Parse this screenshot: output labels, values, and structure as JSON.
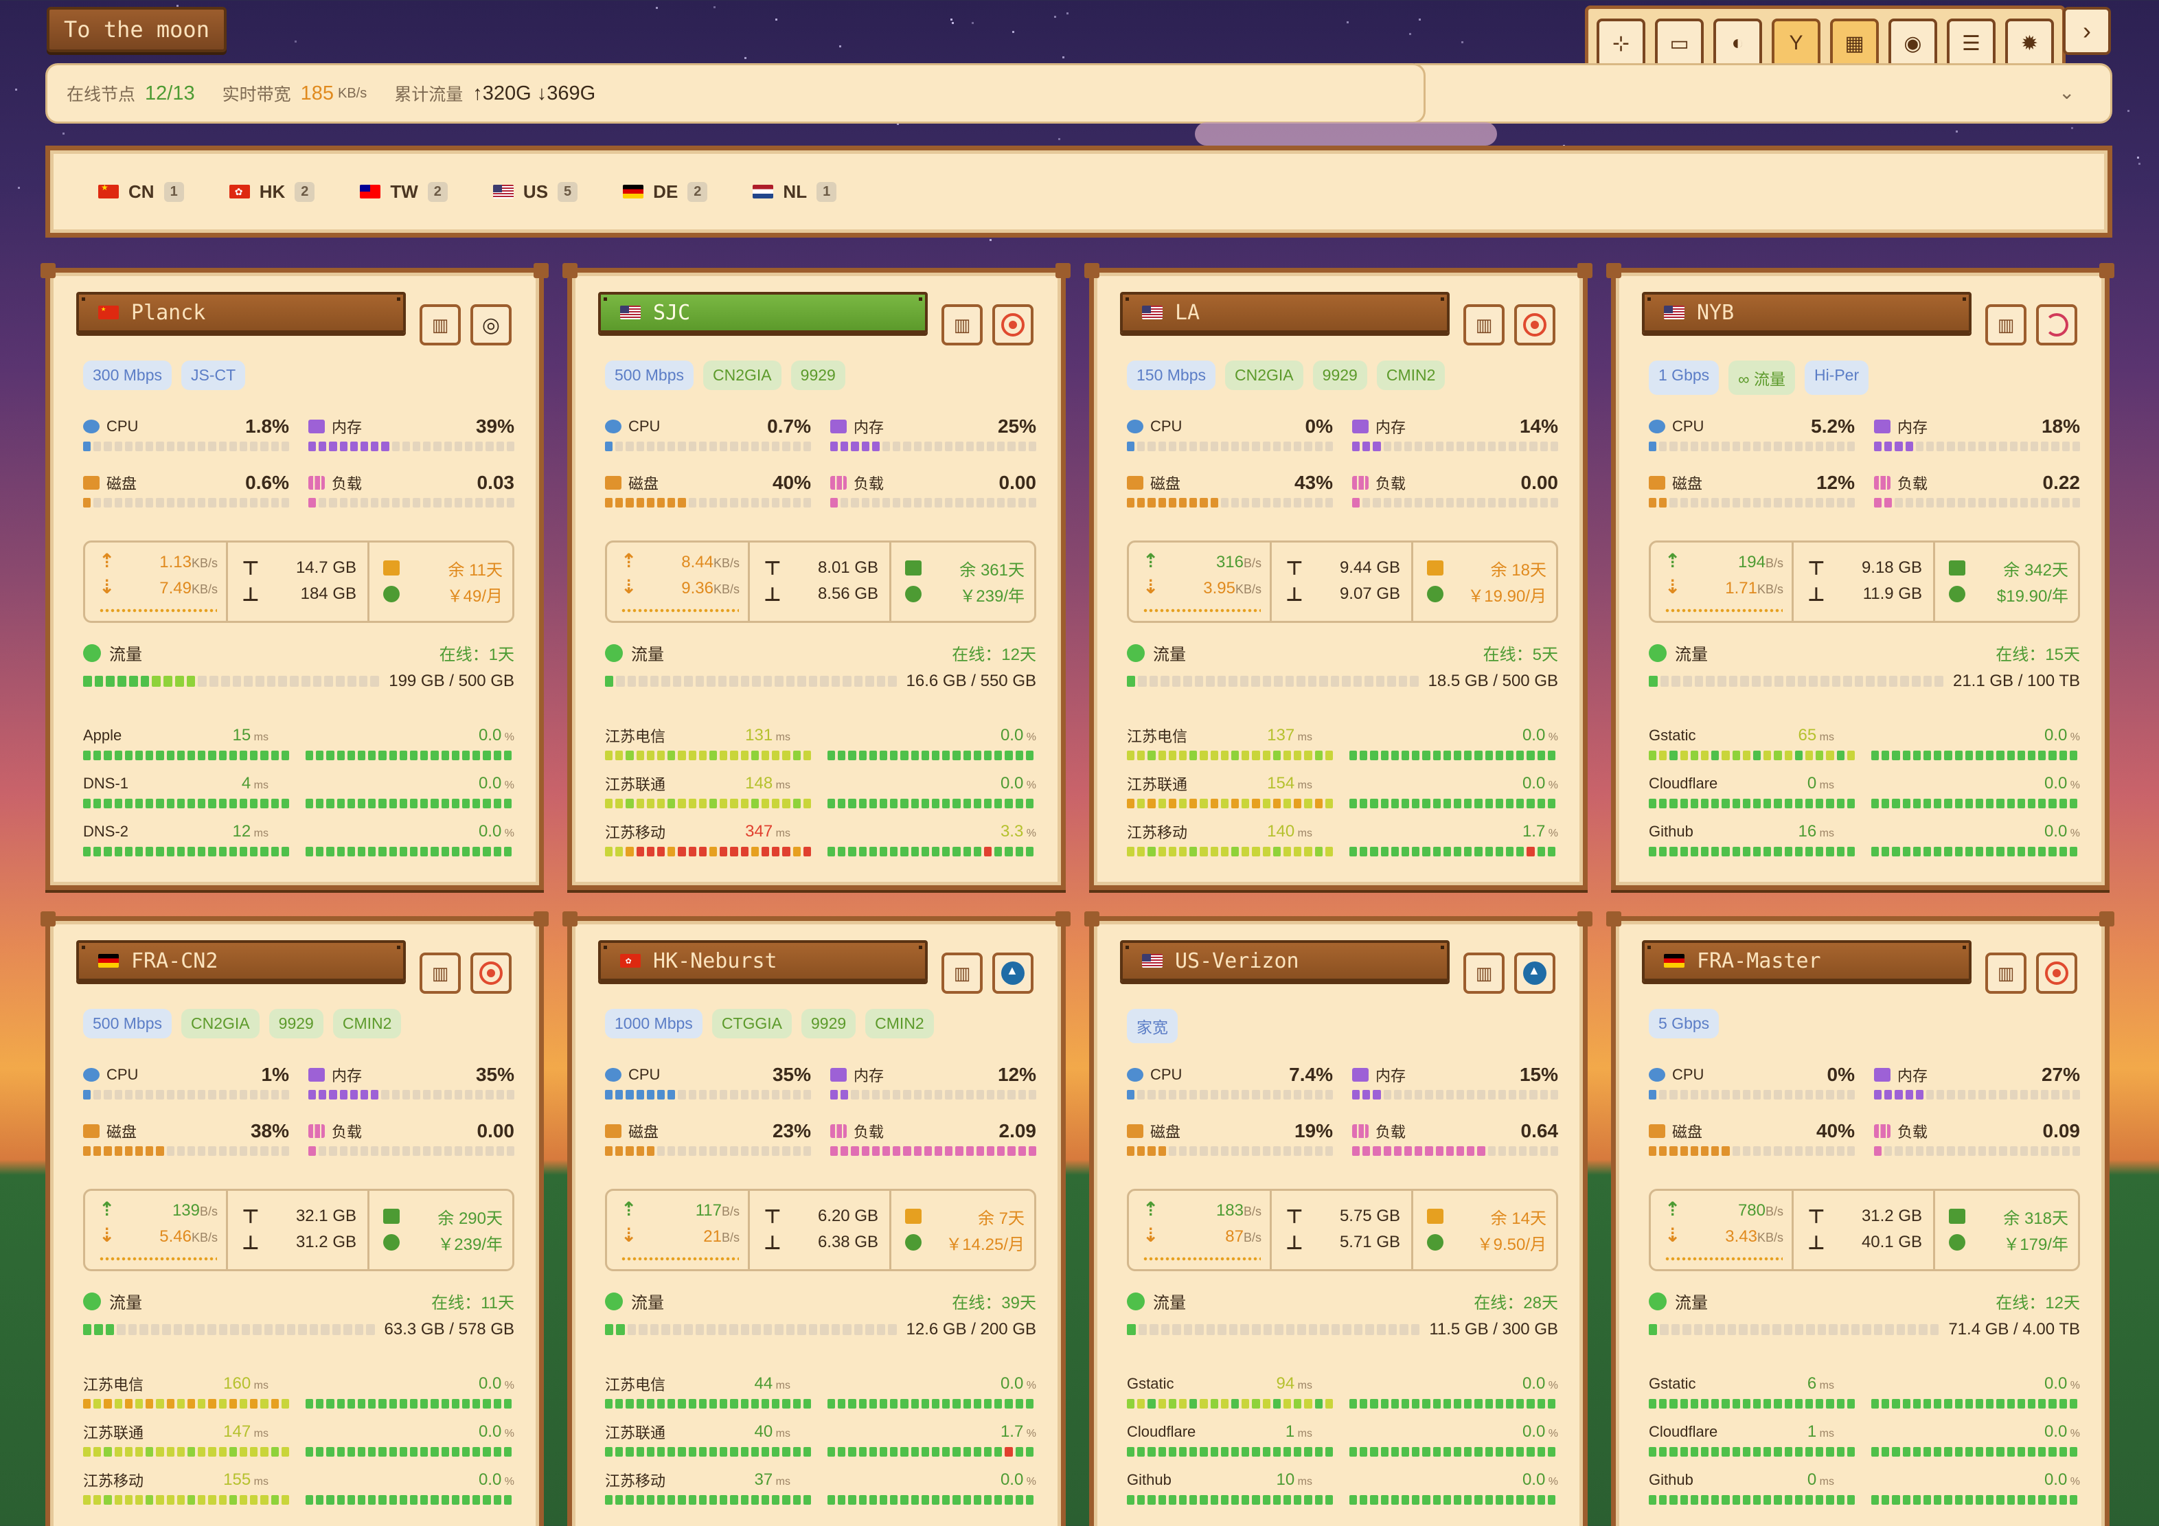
{
  "app": {
    "title": "To the moon"
  },
  "toolbar": {
    "buttons": [
      {
        "icon": "move-icon",
        "glyph": "⊹",
        "active": false
      },
      {
        "icon": "monitor-icon",
        "glyph": "▭",
        "active": false
      },
      {
        "icon": "moon-icon",
        "glyph": "◐",
        "active": false
      },
      {
        "icon": "antenna-icon",
        "glyph": "Y",
        "active": true
      },
      {
        "icon": "grid-icon",
        "glyph": "▦",
        "active": true
      },
      {
        "icon": "palette-icon",
        "glyph": "◉",
        "active": false
      },
      {
        "icon": "sliders-icon",
        "glyph": "☰",
        "active": false
      },
      {
        "icon": "settings-icon",
        "glyph": "✹",
        "active": false
      }
    ],
    "expand_glyph": "›"
  },
  "stats": {
    "online_label": "在线节点",
    "online_value": "12/13",
    "bandwidth_label": "实时带宽",
    "bandwidth_value": "185",
    "bandwidth_unit": "KB/s",
    "traffic_label": "累计流量",
    "traffic_value": "↑320G ↓369G",
    "collapse_glyph": "⌄"
  },
  "filters": [
    {
      "code": "CN",
      "flag": "cn",
      "count": "1"
    },
    {
      "code": "HK",
      "flag": "hk",
      "count": "2"
    },
    {
      "code": "TW",
      "flag": "tw",
      "count": "2"
    },
    {
      "code": "US",
      "flag": "us",
      "count": "5"
    },
    {
      "code": "DE",
      "flag": "de",
      "count": "2"
    },
    {
      "code": "NL",
      "flag": "nl",
      "count": "1"
    }
  ],
  "labels": {
    "cpu": "CPU",
    "mem": "内存",
    "disk": "磁盘",
    "load": "负载",
    "traffic": "流量"
  },
  "servers": [
    {
      "name": "Planck",
      "flag": "cn",
      "online_title": false,
      "os": "lin",
      "tags": [
        {
          "text": "300 Mbps",
          "style": "blue"
        },
        {
          "text": "JS-CT",
          "style": "blue"
        }
      ],
      "cpu": "1.8%",
      "cpu_fill": 0.02,
      "mem": "39%",
      "mem_fill": 0.39,
      "disk": "0.6%",
      "disk_fill": 0.01,
      "load": "0.03",
      "load_fill": 0.03,
      "up": "1.13",
      "up_unit": "KB/s",
      "down": "7.49",
      "down_unit": "KB/s",
      "speed_color": "orange",
      "total_up": "14.7 GB",
      "total_down": "184 GB",
      "remaining": "余 11天",
      "price": "￥49/月",
      "remain_color": "orange",
      "online_days": "在线：1天",
      "traffic_used": "199 GB / 500 GB",
      "traffic_fill": 0.4,
      "pings": [
        {
          "name": "Apple",
          "ms": "15",
          "loss": "0.0",
          "lat_colors": "g"
        },
        {
          "name": "DNS-1",
          "ms": "4",
          "loss": "0.0",
          "lat_colors": "g"
        },
        {
          "name": "DNS-2",
          "ms": "12",
          "loss": "0.0",
          "lat_colors": "g"
        }
      ]
    },
    {
      "name": "SJC",
      "flag": "us",
      "online_title": true,
      "os": "ring",
      "tags": [
        {
          "text": "500 Mbps",
          "style": "blue"
        },
        {
          "text": "CN2GIA",
          "style": "green"
        },
        {
          "text": "9929",
          "style": "green"
        }
      ],
      "cpu": "0.7%",
      "cpu_fill": 0.01,
      "mem": "25%",
      "mem_fill": 0.25,
      "disk": "40%",
      "disk_fill": 0.4,
      "load": "0.00",
      "load_fill": 0,
      "up": "8.44",
      "up_unit": "KB/s",
      "down": "9.36",
      "down_unit": "KB/s",
      "speed_color": "orange",
      "total_up": "8.01 GB",
      "total_down": "8.56 GB",
      "remaining": "余 361天",
      "price": "￥239/年",
      "remain_color": "green",
      "online_days": "在线：12天",
      "traffic_used": "16.6 GB / 550 GB",
      "traffic_fill": 0.03,
      "pings": [
        {
          "name": "江苏电信",
          "ms": "131",
          "loss": "0.0",
          "lat_colors": "y"
        },
        {
          "name": "江苏联通",
          "ms": "148",
          "loss": "0.0",
          "lat_colors": "y"
        },
        {
          "name": "江苏移动",
          "ms": "347",
          "loss": "3.3",
          "lat_colors": "r"
        }
      ]
    },
    {
      "name": "LA",
      "flag": "us",
      "online_title": false,
      "os": "ring",
      "tags": [
        {
          "text": "150 Mbps",
          "style": "blue"
        },
        {
          "text": "CN2GIA",
          "style": "green"
        },
        {
          "text": "9929",
          "style": "green"
        },
        {
          "text": "CMIN2",
          "style": "green"
        }
      ],
      "cpu": "0%",
      "cpu_fill": 0,
      "mem": "14%",
      "mem_fill": 0.14,
      "disk": "43%",
      "disk_fill": 0.43,
      "load": "0.00",
      "load_fill": 0,
      "up": "316",
      "up_unit": "B/s",
      "down": "3.95",
      "down_unit": "KB/s",
      "speed_color": "green",
      "total_up": "9.44 GB",
      "total_down": "9.07 GB",
      "remaining": "余 18天",
      "price": "￥19.90/月",
      "remain_color": "orange",
      "online_days": "在线：5天",
      "traffic_used": "18.5 GB / 500 GB",
      "traffic_fill": 0.04,
      "pings": [
        {
          "name": "江苏电信",
          "ms": "137",
          "loss": "0.0",
          "lat_colors": "y"
        },
        {
          "name": "江苏联通",
          "ms": "154",
          "loss": "0.0",
          "lat_colors": "o"
        },
        {
          "name": "江苏移动",
          "ms": "140",
          "loss": "1.7",
          "lat_colors": "y"
        }
      ]
    },
    {
      "name": "NYB",
      "flag": "us",
      "online_title": false,
      "os": "deb",
      "tags": [
        {
          "text": "1 Gbps",
          "style": "blue"
        },
        {
          "text": "∞ 流量",
          "style": "green"
        },
        {
          "text": "Hi-Per",
          "style": "blue"
        }
      ],
      "cpu": "5.2%",
      "cpu_fill": 0.05,
      "mem": "18%",
      "mem_fill": 0.18,
      "disk": "12%",
      "disk_fill": 0.12,
      "load": "0.22",
      "load_fill": 0.1,
      "up": "194",
      "up_unit": "B/s",
      "down": "1.71",
      "down_unit": "KB/s",
      "speed_color": "green",
      "total_up": "9.18 GB",
      "total_down": "11.9 GB",
      "remaining": "余 342天",
      "price": "$19.90/年",
      "remain_color": "green",
      "online_days": "在线：15天",
      "traffic_used": "21.1 GB / 100 TB",
      "traffic_fill": 0.01,
      "pings": [
        {
          "name": "Gstatic",
          "ms": "65",
          "loss": "0.0",
          "lat_colors": "m"
        },
        {
          "name": "Cloudflare",
          "ms": "0",
          "loss": "0.0",
          "lat_colors": "g"
        },
        {
          "name": "Github",
          "ms": "16",
          "loss": "0.0",
          "lat_colors": "g"
        }
      ]
    },
    {
      "name": "FRA-CN2",
      "flag": "de",
      "online_title": false,
      "os": "ring",
      "tags": [
        {
          "text": "500 Mbps",
          "style": "blue"
        },
        {
          "text": "CN2GIA",
          "style": "green"
        },
        {
          "text": "9929",
          "style": "green"
        },
        {
          "text": "CMIN2",
          "style": "green"
        }
      ],
      "cpu": "1%",
      "cpu_fill": 0.01,
      "mem": "35%",
      "mem_fill": 0.35,
      "disk": "38%",
      "disk_fill": 0.38,
      "load": "0.00",
      "load_fill": 0,
      "up": "139",
      "up_unit": "B/s",
      "down": "5.46",
      "down_unit": "KB/s",
      "speed_color": "green",
      "total_up": "32.1 GB",
      "total_down": "31.2 GB",
      "remaining": "余 290天",
      "price": "￥239/年",
      "remain_color": "green",
      "online_days": "在线：11天",
      "traffic_used": "63.3 GB / 578 GB",
      "traffic_fill": 0.11,
      "pings": [
        {
          "name": "江苏电信",
          "ms": "160",
          "loss": "0.0",
          "lat_colors": "o"
        },
        {
          "name": "江苏联通",
          "ms": "147",
          "loss": "0.0",
          "lat_colors": "y"
        },
        {
          "name": "江苏移动",
          "ms": "155",
          "loss": "0.0",
          "lat_colors": "y"
        }
      ]
    },
    {
      "name": "HK-Neburst",
      "flag": "hk",
      "online_title": false,
      "os": "arch",
      "tags": [
        {
          "text": "1000 Mbps",
          "style": "blue"
        },
        {
          "text": "CTGGIA",
          "style": "green"
        },
        {
          "text": "9929",
          "style": "green"
        },
        {
          "text": "CMIN2",
          "style": "green"
        }
      ],
      "cpu": "35%",
      "cpu_fill": 0.35,
      "mem": "12%",
      "mem_fill": 0.12,
      "disk": "23%",
      "disk_fill": 0.23,
      "load": "2.09",
      "load_fill": 1,
      "up": "117",
      "up_unit": "B/s",
      "down": "21",
      "down_unit": "B/s",
      "speed_color": "green",
      "total_up": "6.20 GB",
      "total_down": "6.38 GB",
      "remaining": "余 7天",
      "price": "￥14.25/月",
      "remain_color": "orange",
      "online_days": "在线：39天",
      "traffic_used": "12.6 GB / 200 GB",
      "traffic_fill": 0.06,
      "pings": [
        {
          "name": "江苏电信",
          "ms": "44",
          "loss": "0.0",
          "lat_colors": "g"
        },
        {
          "name": "江苏联通",
          "ms": "40",
          "loss": "1.7",
          "lat_colors": "g"
        },
        {
          "name": "江苏移动",
          "ms": "37",
          "loss": "0.0",
          "lat_colors": "g"
        }
      ]
    },
    {
      "name": "US-Verizon",
      "flag": "us",
      "online_title": false,
      "os": "arch",
      "tags": [
        {
          "text": "家宽",
          "style": "blue"
        }
      ],
      "cpu": "7.4%",
      "cpu_fill": 0.07,
      "mem": "15%",
      "mem_fill": 0.15,
      "disk": "19%",
      "disk_fill": 0.19,
      "load": "0.64",
      "load_fill": 0.64,
      "up": "183",
      "up_unit": "B/s",
      "down": "87",
      "down_unit": "B/s",
      "speed_color": "green",
      "total_up": "5.75 GB",
      "total_down": "5.71 GB",
      "remaining": "余 14天",
      "price": "￥9.50/月",
      "remain_color": "orange",
      "online_days": "在线：28天",
      "traffic_used": "11.5 GB / 300 GB",
      "traffic_fill": 0.04,
      "pings": [
        {
          "name": "Gstatic",
          "ms": "94",
          "loss": "0.0",
          "lat_colors": "m"
        },
        {
          "name": "Cloudflare",
          "ms": "1",
          "loss": "0.0",
          "lat_colors": "g"
        },
        {
          "name": "Github",
          "ms": "10",
          "loss": "0.0",
          "lat_colors": "g"
        }
      ]
    },
    {
      "name": "FRA-Master",
      "flag": "de",
      "online_title": false,
      "os": "ring",
      "tags": [
        {
          "text": "5 Gbps",
          "style": "blue"
        }
      ],
      "cpu": "0%",
      "cpu_fill": 0,
      "mem": "27%",
      "mem_fill": 0.27,
      "disk": "40%",
      "disk_fill": 0.4,
      "load": "0.09",
      "load_fill": 0.05,
      "up": "780",
      "up_unit": "B/s",
      "down": "3.43",
      "down_unit": "KB/s",
      "speed_color": "green",
      "total_up": "31.2 GB",
      "total_down": "40.1 GB",
      "remaining": "余 318天",
      "price": "￥179/年",
      "remain_color": "green",
      "online_days": "在线：12天",
      "traffic_used": "71.4 GB / 4.00 TB",
      "traffic_fill": 0.02,
      "pings": [
        {
          "name": "Gstatic",
          "ms": "6",
          "loss": "0.0",
          "lat_colors": "g"
        },
        {
          "name": "Cloudflare",
          "ms": "1",
          "loss": "0.0",
          "lat_colors": "g"
        },
        {
          "name": "Github",
          "ms": "0",
          "loss": "0.0",
          "lat_colors": "g"
        }
      ]
    }
  ],
  "colors": {
    "cpu": "#4e8dd0",
    "mem": "#9d61d6",
    "disk": "#e0922c",
    "load": "#e06eb3",
    "green": "#4fc04a",
    "yellow": "#c9d53a",
    "orange": "#e6a020",
    "red": "#e0402f",
    "lime": "#8fd23a"
  }
}
